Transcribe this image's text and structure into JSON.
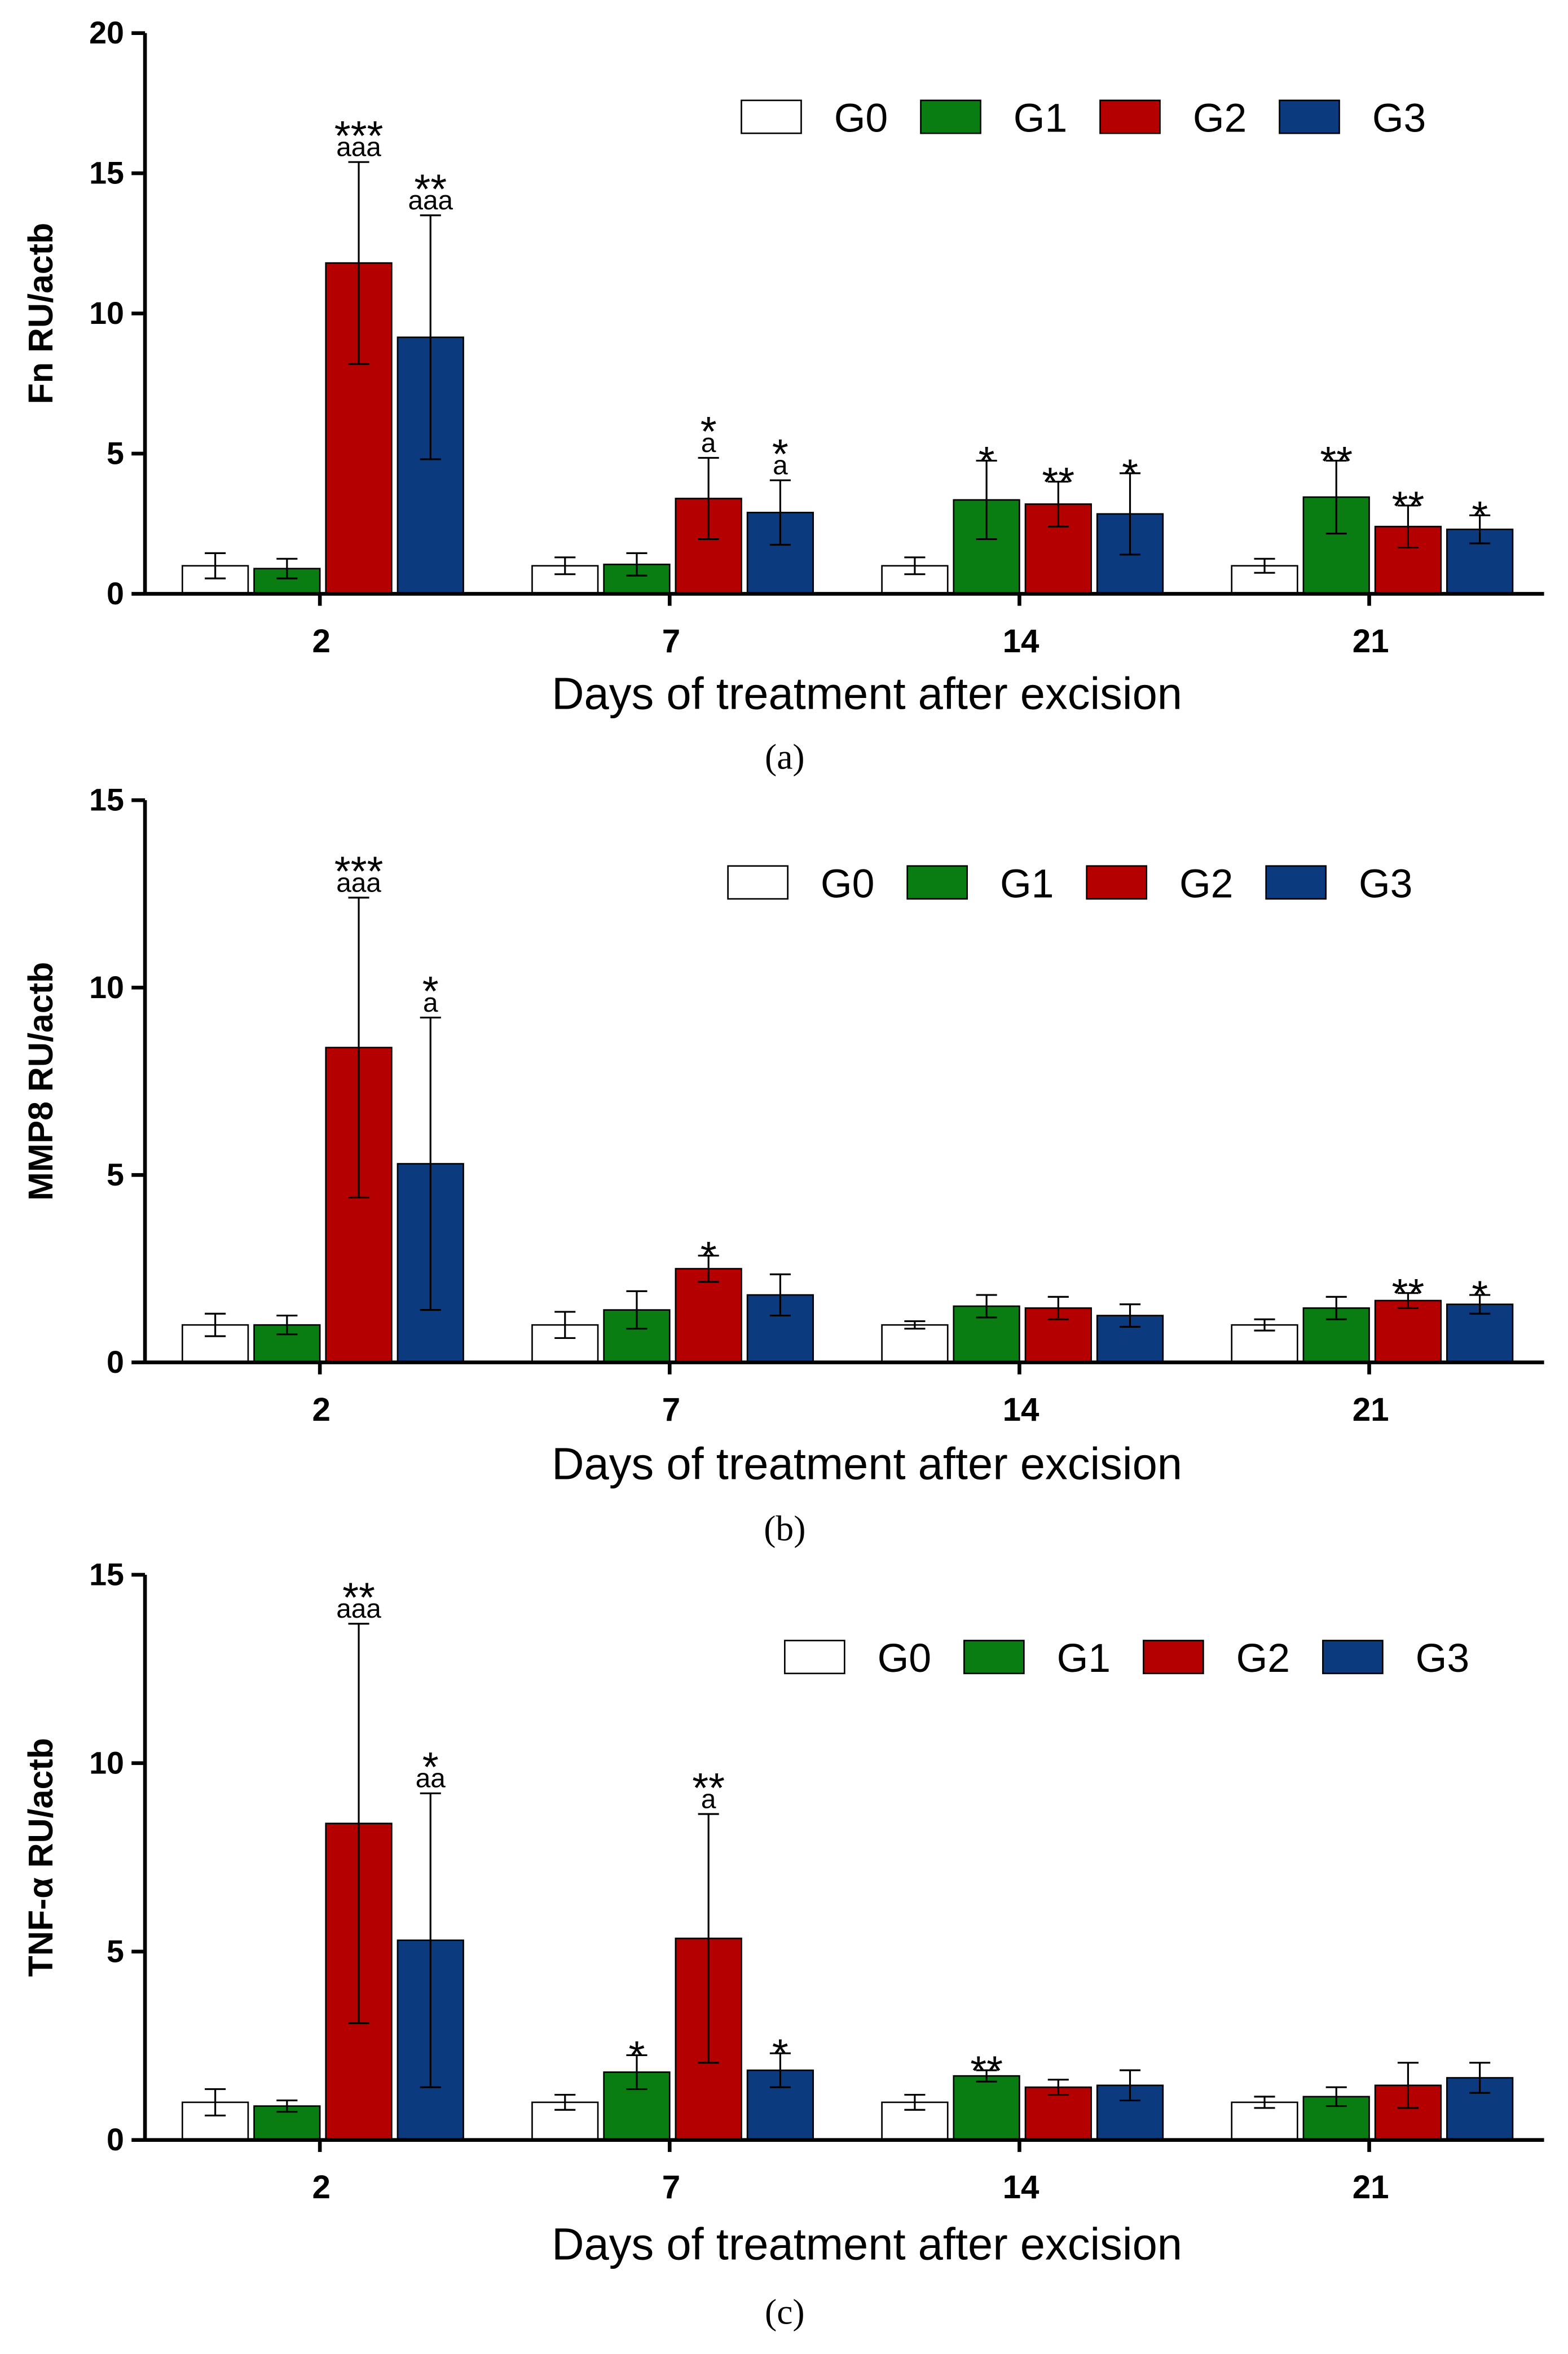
{
  "chart_data": [
    {
      "type": "bar",
      "ylabel": "Fn RU/actb",
      "xlabel": "Days of treatment after excision",
      "caption": "(a)",
      "categories": [
        "2",
        "7",
        "14",
        "21"
      ],
      "ylim": [
        0,
        20
      ],
      "yticks": [
        0,
        5,
        10,
        15,
        20
      ],
      "series": [
        {
          "name": "G0",
          "color": "#ffffff",
          "values": [
            1,
            1,
            1,
            1
          ],
          "errors": [
            0.45,
            0.3,
            0.3,
            0.25
          ],
          "stars": [
            null,
            null,
            null,
            null
          ],
          "letters": [
            null,
            null,
            null,
            null
          ]
        },
        {
          "name": "G1",
          "color": "#0a7d12",
          "values": [
            0.9,
            1.05,
            3.35,
            3.45
          ],
          "errors": [
            0.35,
            0.4,
            1.4,
            1.3
          ],
          "stars": [
            null,
            null,
            "*",
            "**"
          ],
          "letters": [
            null,
            null,
            null,
            null
          ]
        },
        {
          "name": "G2",
          "color": "#b50000",
          "values": [
            11.8,
            3.4,
            3.2,
            2.4
          ],
          "errors": [
            3.6,
            1.45,
            0.8,
            0.75
          ],
          "stars": [
            "***",
            "*",
            "**",
            "**"
          ],
          "letters": [
            "aaa",
            "a",
            null,
            null
          ]
        },
        {
          "name": "G3",
          "color": "#0b3a7e",
          "values": [
            9.15,
            2.9,
            2.85,
            2.3
          ],
          "errors": [
            4.35,
            1.15,
            1.45,
            0.5
          ],
          "stars": [
            "**",
            "*",
            "*",
            "*"
          ],
          "letters": [
            "aaa",
            "a",
            null,
            null
          ]
        }
      ]
    },
    {
      "type": "bar",
      "ylabel": "MMP8 RU/actb",
      "xlabel": "Days of treatment after excision",
      "caption": "(b)",
      "categories": [
        "2",
        "7",
        "14",
        "21"
      ],
      "ylim": [
        0,
        15
      ],
      "yticks": [
        0,
        5,
        10,
        15
      ],
      "series": [
        {
          "name": "G0",
          "color": "#ffffff",
          "values": [
            1,
            1,
            1,
            1
          ],
          "errors": [
            0.3,
            0.35,
            0.1,
            0.15
          ],
          "stars": [
            null,
            null,
            null,
            null
          ],
          "letters": [
            null,
            null,
            null,
            null
          ]
        },
        {
          "name": "G1",
          "color": "#0a7d12",
          "values": [
            1,
            1.4,
            1.5,
            1.45
          ],
          "errors": [
            0.25,
            0.5,
            0.3,
            0.3
          ],
          "stars": [
            null,
            null,
            null,
            null
          ],
          "letters": [
            null,
            null,
            null,
            null
          ]
        },
        {
          "name": "G2",
          "color": "#b50000",
          "values": [
            8.4,
            2.5,
            1.45,
            1.65
          ],
          "errors": [
            4,
            0.35,
            0.3,
            0.2
          ],
          "stars": [
            "***",
            "*",
            null,
            "**"
          ],
          "letters": [
            "aaa",
            null,
            null,
            null
          ]
        },
        {
          "name": "G3",
          "color": "#0b3a7e",
          "values": [
            5.3,
            1.8,
            1.25,
            1.55
          ],
          "errors": [
            3.9,
            0.55,
            0.3,
            0.25
          ],
          "stars": [
            "*",
            null,
            null,
            "*"
          ],
          "letters": [
            "a",
            null,
            null,
            null
          ]
        }
      ]
    },
    {
      "type": "bar",
      "ylabel": "TNF-α RU/actb",
      "xlabel": "Days of treatment after excision",
      "caption": "(c)",
      "categories": [
        "2",
        "7",
        "14",
        "21"
      ],
      "ylim": [
        0,
        15
      ],
      "yticks": [
        0,
        5,
        10,
        15
      ],
      "series": [
        {
          "name": "G0",
          "color": "#ffffff",
          "values": [
            1,
            1,
            1,
            1
          ],
          "errors": [
            0.35,
            0.2,
            0.2,
            0.15
          ],
          "stars": [
            null,
            null,
            null,
            null
          ],
          "letters": [
            null,
            null,
            null,
            null
          ]
        },
        {
          "name": "G1",
          "color": "#0a7d12",
          "values": [
            0.9,
            1.8,
            1.7,
            1.15
          ],
          "errors": [
            0.15,
            0.45,
            0.15,
            0.25
          ],
          "stars": [
            null,
            "*",
            "**",
            null
          ],
          "letters": [
            null,
            null,
            null,
            null
          ]
        },
        {
          "name": "G2",
          "color": "#b50000",
          "values": [
            8.4,
            5.35,
            1.4,
            1.45
          ],
          "errors": [
            5.3,
            3.3,
            0.2,
            0.6
          ],
          "stars": [
            "**",
            "**",
            null,
            null
          ],
          "letters": [
            "aaa",
            "a",
            null,
            null
          ]
        },
        {
          "name": "G3",
          "color": "#0b3a7e",
          "values": [
            5.3,
            1.85,
            1.45,
            1.65
          ],
          "errors": [
            3.9,
            0.45,
            0.4,
            0.4
          ],
          "stars": [
            "*",
            "*",
            null,
            null
          ],
          "letters": [
            "aa",
            null,
            null,
            null
          ]
        }
      ]
    }
  ]
}
